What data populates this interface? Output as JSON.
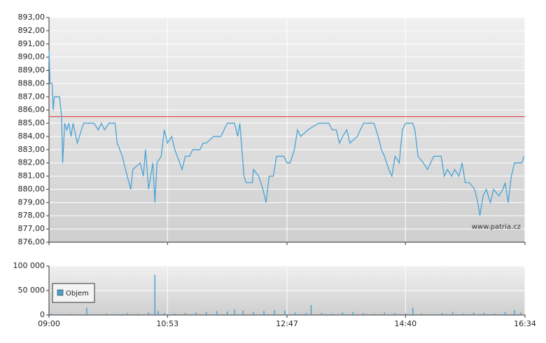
{
  "chart_data": [
    {
      "type": "line",
      "color": "#4aa3d6",
      "x": [
        "09:00",
        "09:01",
        "09:03",
        "09:04",
        "09:05",
        "09:10",
        "09:12",
        "09:13",
        "09:15",
        "09:17",
        "09:19",
        "09:21",
        "09:23",
        "09:27",
        "09:33",
        "09:43",
        "09:47",
        "09:50",
        "09:53",
        "09:57",
        "10:03",
        "10:05",
        "10:10",
        "10:13",
        "10:18",
        "10:20",
        "10:27",
        "10:30",
        "10:32",
        "10:35",
        "10:39",
        "10:41",
        "10:43",
        "10:47",
        "10:50",
        "10:53",
        "10:57",
        "11:00",
        "11:07",
        "11:10",
        "11:14",
        "11:17",
        "11:24",
        "11:27",
        "11:30",
        "11:37",
        "11:44",
        "11:47",
        "11:50",
        "11:57",
        "12:00",
        "12:02",
        "12:04",
        "12:06",
        "12:08",
        "12:14",
        "12:15",
        "12:20",
        "12:24",
        "12:27",
        "12:30",
        "12:34",
        "12:37",
        "12:44",
        "12:47",
        "12:50",
        "12:54",
        "12:57",
        "13:00",
        "13:07",
        "13:17",
        "13:27",
        "13:30",
        "13:34",
        "13:37",
        "13:40",
        "13:44",
        "13:47",
        "13:54",
        "13:57",
        "14:00",
        "14:10",
        "14:14",
        "14:17",
        "14:20",
        "14:24",
        "14:27",
        "14:30",
        "14:34",
        "14:37",
        "14:40",
        "14:47",
        "14:49",
        "14:52",
        "14:57",
        "15:01",
        "15:07",
        "15:14",
        "15:17",
        "15:20",
        "15:24",
        "15:27",
        "15:31",
        "15:34",
        "15:37",
        "15:41",
        "15:46",
        "15:49",
        "15:51",
        "15:54",
        "15:57",
        "16:01",
        "16:04",
        "16:09",
        "16:13",
        "16:15",
        "16:18",
        "16:21",
        "16:24",
        "16:27",
        "16:31",
        "16:33"
      ],
      "values": [
        890.5,
        888,
        888,
        886,
        887,
        887,
        885.5,
        882,
        885,
        884.5,
        885,
        884,
        885,
        883.5,
        885,
        885,
        884.5,
        885,
        884.5,
        885,
        885,
        883.5,
        882.5,
        881.5,
        880,
        881.5,
        882,
        881,
        883,
        880,
        882,
        879,
        882,
        882.5,
        884.5,
        883.5,
        884,
        883,
        881.5,
        882.5,
        882.5,
        883,
        883,
        883.5,
        883.5,
        884,
        884,
        884.5,
        885,
        885,
        884,
        885,
        883,
        881,
        880.5,
        880.5,
        881.5,
        881,
        880,
        879,
        881,
        881,
        882.5,
        882.5,
        882,
        882,
        883,
        884.5,
        884,
        884.5,
        885,
        885,
        884.5,
        884.5,
        883.5,
        884,
        884.5,
        883.5,
        884,
        884.5,
        885,
        885,
        884,
        883,
        882.5,
        881.5,
        881,
        882.5,
        882,
        884.5,
        885,
        885,
        884.5,
        882.5,
        882,
        881.5,
        882.5,
        882.5,
        881,
        881.5,
        881,
        881.5,
        881,
        882,
        880.5,
        880.5,
        880,
        879,
        878,
        879.5,
        880,
        879,
        880,
        879.5,
        880,
        880.5,
        879,
        881,
        882,
        882,
        882,
        882.5
      ],
      "reference_line": 885.5,
      "reference_color": "#e03030",
      "ylim": [
        876,
        893
      ],
      "yticks": [
        {
          "value": 876,
          "label": "876,00"
        },
        {
          "value": 877,
          "label": "877,00"
        },
        {
          "value": 878,
          "label": "878,00"
        },
        {
          "value": 879,
          "label": "879,00"
        },
        {
          "value": 880,
          "label": "880,00"
        },
        {
          "value": 881,
          "label": "881,00"
        },
        {
          "value": 882,
          "label": "882,00"
        },
        {
          "value": 883,
          "label": "883,00"
        },
        {
          "value": 884,
          "label": "884,00"
        },
        {
          "value": 885,
          "label": "885,00"
        },
        {
          "value": 886,
          "label": "886,00"
        },
        {
          "value": 887,
          "label": "887,00"
        },
        {
          "value": 888,
          "label": "888,00"
        },
        {
          "value": 889,
          "label": "889,00"
        },
        {
          "value": 890,
          "label": "890,00"
        },
        {
          "value": 891,
          "label": "891,00"
        },
        {
          "value": 892,
          "label": "892,00"
        },
        {
          "value": 893,
          "label": "893,00"
        }
      ],
      "xlim": [
        "09:00",
        "16:34"
      ],
      "xticks": [
        "09:00",
        "10:53",
        "12:47",
        "14:40",
        "16:34"
      ],
      "grid": true,
      "watermark": "www.patria.cz"
    },
    {
      "type": "bar",
      "x": [
        "09:02",
        "09:10",
        "09:20",
        "09:30",
        "09:36",
        "09:45",
        "09:55",
        "10:05",
        "10:15",
        "10:25",
        "10:35",
        "10:41",
        "10:44",
        "10:50",
        "11:00",
        "11:10",
        "11:20",
        "11:30",
        "11:40",
        "11:50",
        "11:57",
        "12:05",
        "12:15",
        "12:25",
        "12:35",
        "12:45",
        "12:55",
        "13:05",
        "13:10",
        "13:20",
        "13:30",
        "13:40",
        "13:50",
        "14:00",
        "14:10",
        "14:20",
        "14:30",
        "14:40",
        "14:47",
        "14:55",
        "15:05",
        "15:15",
        "15:25",
        "15:35",
        "15:45",
        "15:55",
        "16:05",
        "16:15",
        "16:24",
        "16:30"
      ],
      "series": [
        {
          "name": "Objem",
          "color": "#4a9fd0",
          "values": [
            3000,
            2000,
            2500,
            1500,
            15000,
            2000,
            3000,
            2000,
            4000,
            3000,
            5000,
            82000,
            8000,
            4000,
            3000,
            4000,
            5000,
            6000,
            8000,
            7000,
            11000,
            9000,
            6000,
            8000,
            10000,
            9000,
            5000,
            4000,
            20000,
            4000,
            3000,
            5000,
            6000,
            4000,
            3000,
            5000,
            4000,
            3000,
            15000,
            3000,
            2000,
            4000,
            6000,
            3000,
            5000,
            4000,
            3000,
            6000,
            10000,
            5000
          ]
        }
      ],
      "ylim": [
        0,
        100000
      ],
      "yticks": [
        0,
        {
          "value": 50000,
          "label": "50 000"
        },
        {
          "value": 100000,
          "label": "100 000"
        }
      ],
      "xlim": [
        "09:00",
        "16:34"
      ],
      "xticks": [
        "09:00",
        "10:53",
        "12:47",
        "14:40",
        "16:34"
      ],
      "grid": true,
      "legend": "upper-left"
    }
  ]
}
